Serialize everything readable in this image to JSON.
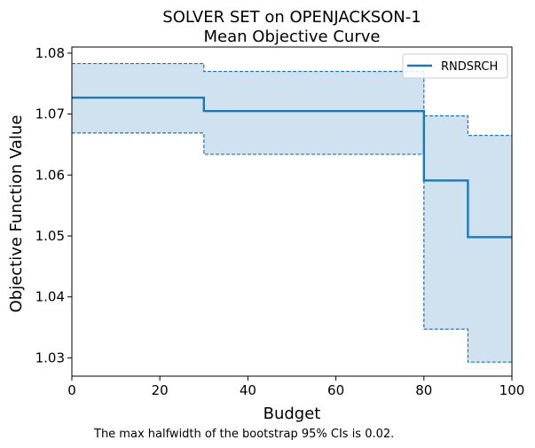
{
  "chart_data": {
    "type": "line",
    "title": [
      "SOLVER SET on OPENJACKSON-1",
      "Mean Objective Curve"
    ],
    "xlabel": "Budget",
    "ylabel": "Objective Function Value",
    "xlim": [
      0,
      100
    ],
    "ylim": [
      1.027,
      1.081
    ],
    "x_ticks": [
      0,
      20,
      40,
      60,
      80,
      100
    ],
    "x_tick_labels": [
      "0",
      "20",
      "40",
      "60",
      "80",
      "100"
    ],
    "y_ticks": [
      1.03,
      1.04,
      1.05,
      1.06,
      1.07,
      1.08
    ],
    "y_tick_labels": [
      "1.03",
      "1.04",
      "1.05",
      "1.06",
      "1.07",
      "1.08"
    ],
    "grid": false,
    "legend_position": "top-right",
    "series": [
      {
        "name": "RNDSRCH",
        "color": "#1f77b4",
        "step": true,
        "x": [
          0,
          30,
          80,
          90,
          100
        ],
        "y": [
          1.0727,
          1.0705,
          1.0591,
          1.0498,
          1.0498
        ],
        "ci_lower": [
          1.0669,
          1.0634,
          1.0347,
          1.0293,
          1.0293
        ],
        "ci_upper": [
          1.0783,
          1.077,
          1.0697,
          1.0665,
          1.0665
        ],
        "ci_fill_color": "#d0e2f0"
      }
    ],
    "footnote": "The max halfwidth of the bootstrap 95% CIs is 0.02."
  }
}
